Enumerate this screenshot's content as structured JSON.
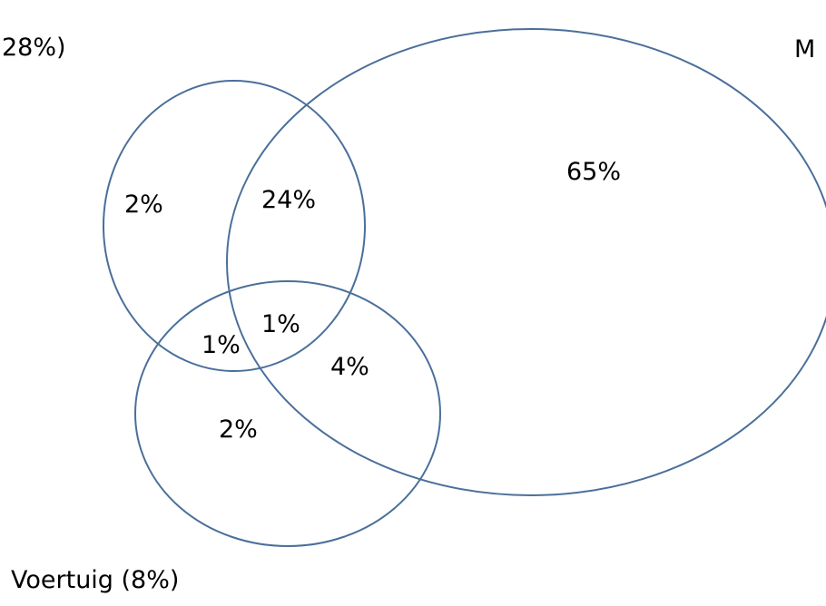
{
  "colors": {
    "outline": "#4a6f9a",
    "text": "#000000",
    "background": "#ffffff"
  },
  "sets": {
    "left_set_label": "28%)",
    "right_set_label": "M",
    "bottom_set_label": "Voertuig (8%)"
  },
  "regions": {
    "left_only": "2%",
    "left_and_right": "24%",
    "right_only": "65%",
    "left_and_bottom": "1%",
    "all_three": "1%",
    "right_and_bottom": "4%",
    "bottom_only": "2%"
  }
}
